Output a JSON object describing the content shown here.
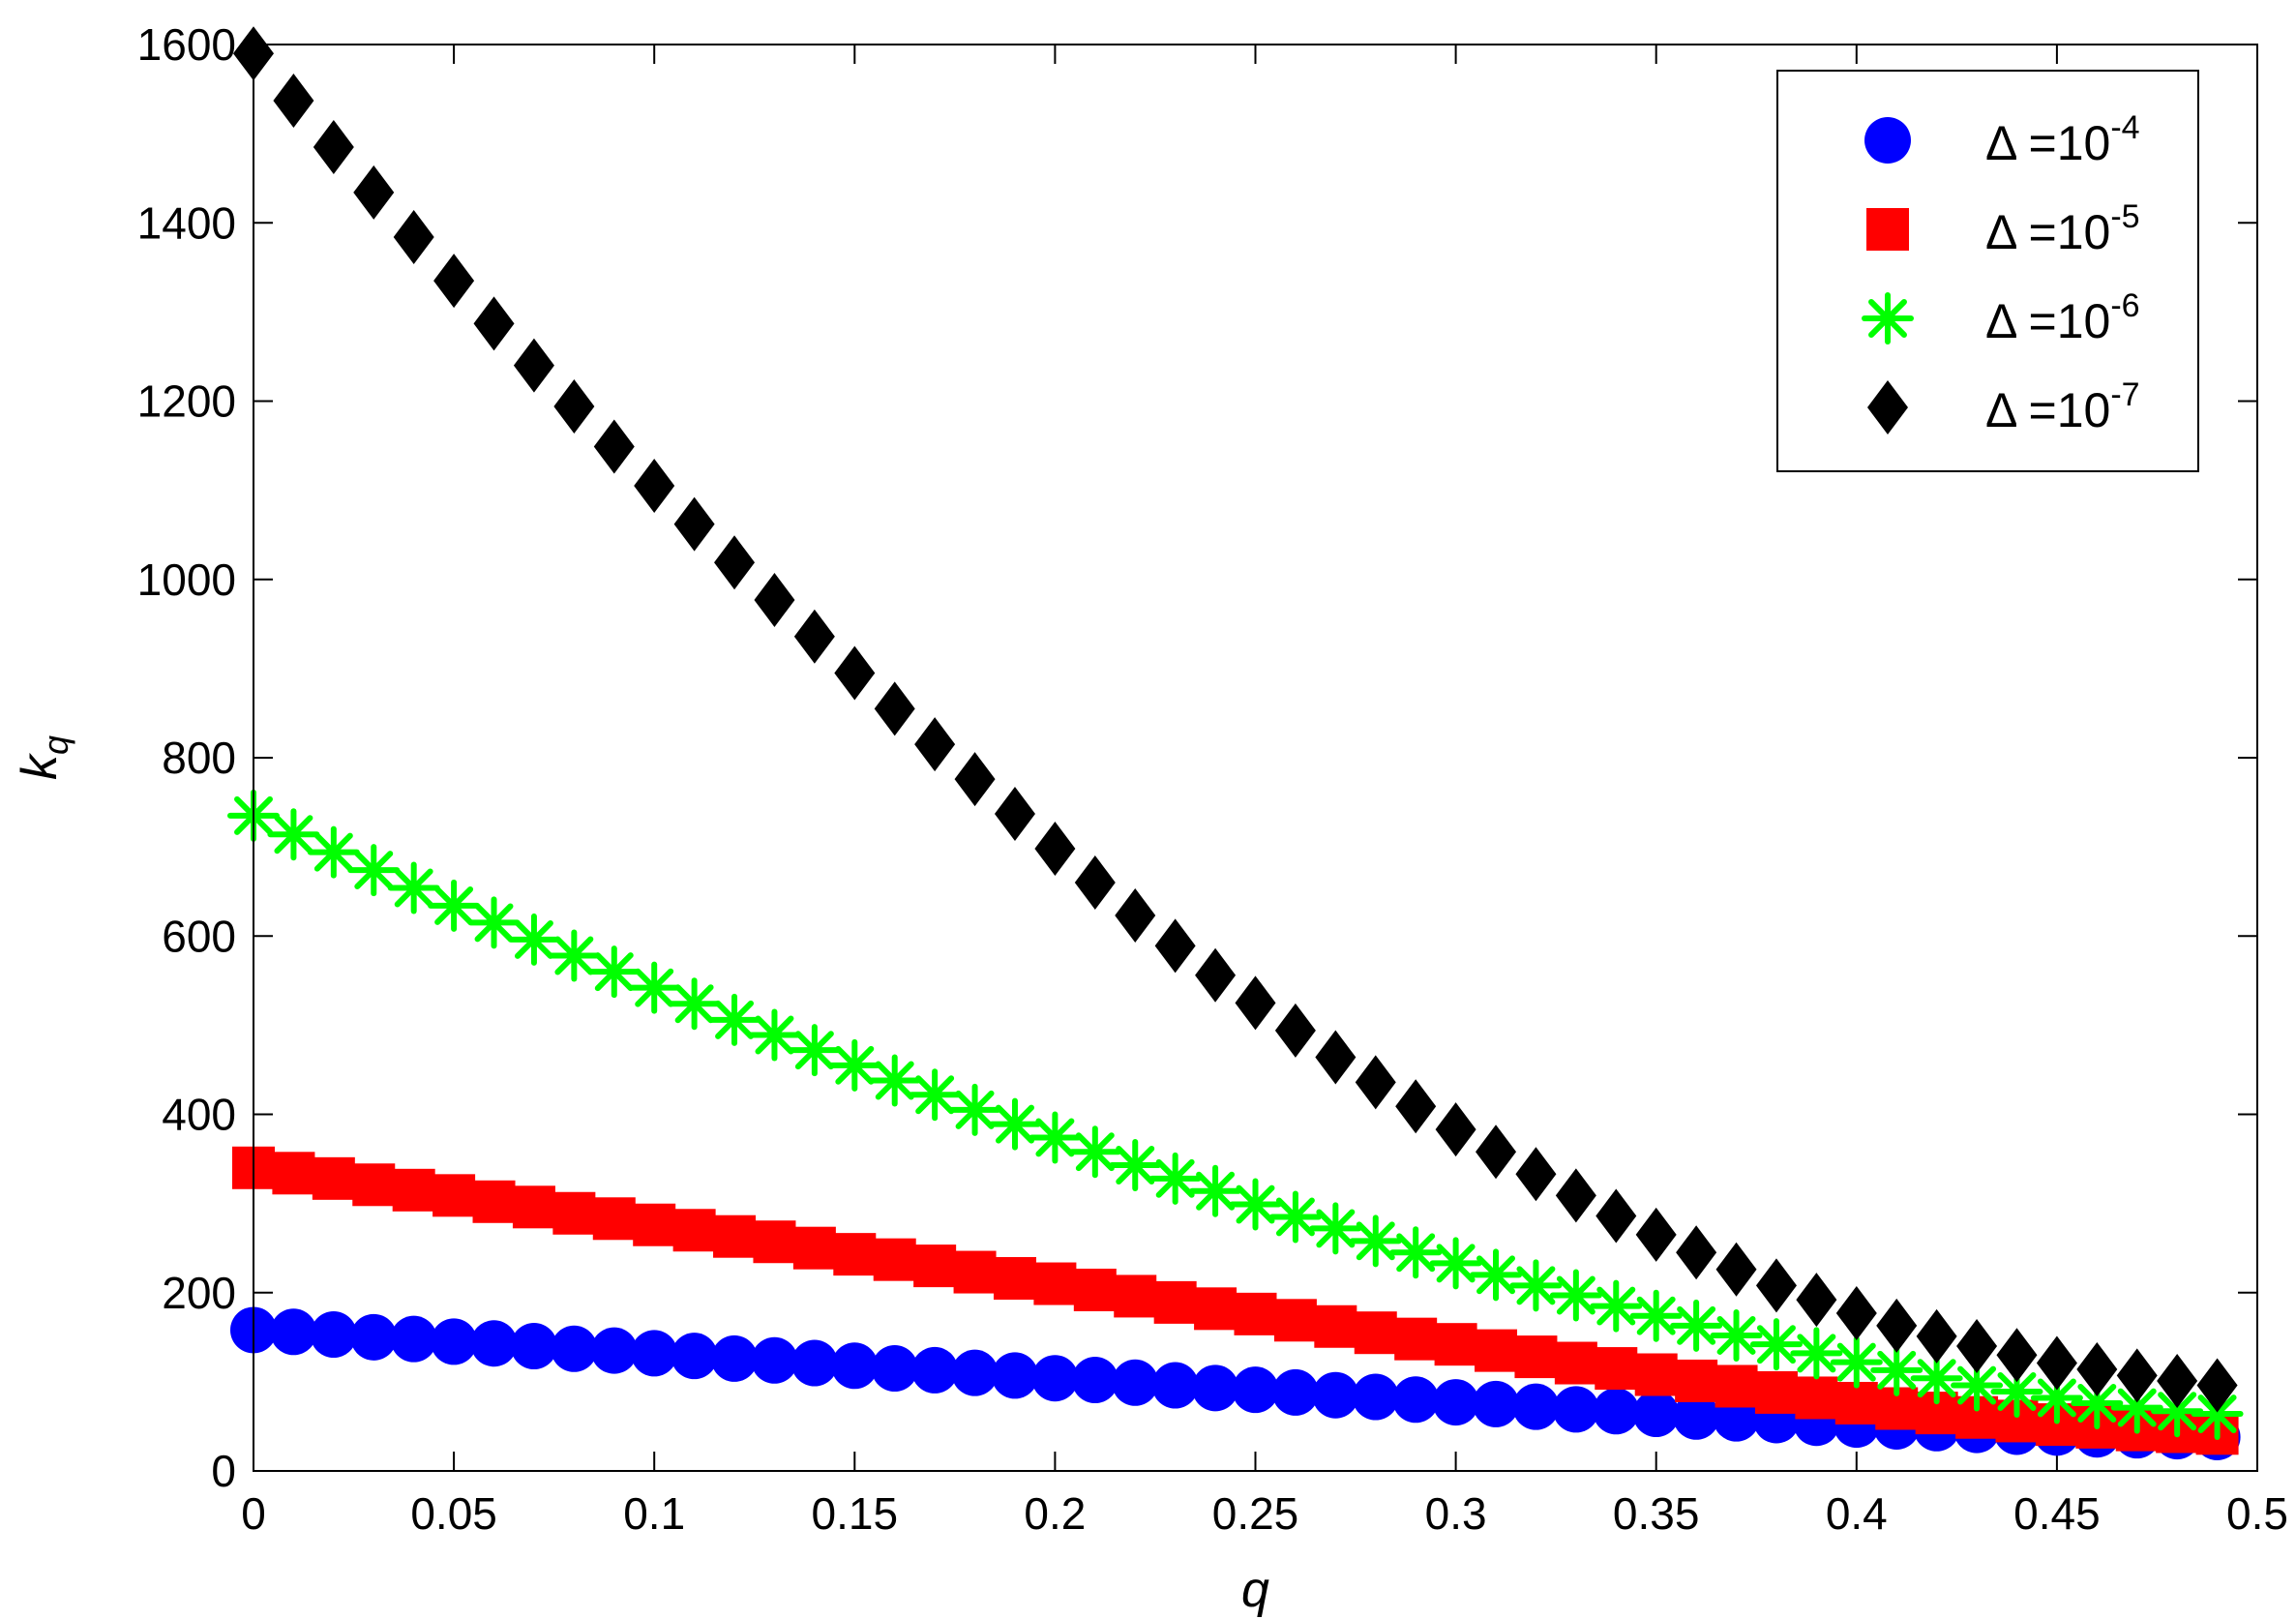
{
  "chart_data": {
    "type": "scatter",
    "xlabel": "q",
    "ylabel": {
      "base": "k",
      "sub": "q"
    },
    "xlim": [
      0,
      0.5
    ],
    "ylim": [
      0,
      1600
    ],
    "xticks": [
      "0",
      "0.05",
      "0.1",
      "0.15",
      "0.2",
      "0.25",
      "0.3",
      "0.35",
      "0.4",
      "0.45",
      "0.5"
    ],
    "yticks": [
      "0",
      "200",
      "400",
      "600",
      "800",
      "1000",
      "1200",
      "1400",
      "1600"
    ],
    "grid": false,
    "legend_position": "top-right",
    "x": [
      0,
      0.01,
      0.02,
      0.03,
      0.04,
      0.05,
      0.06,
      0.07,
      0.08,
      0.09,
      0.1,
      0.11,
      0.12,
      0.13,
      0.14,
      0.15,
      0.16,
      0.17,
      0.18,
      0.19,
      0.2,
      0.21,
      0.22,
      0.23,
      0.24,
      0.25,
      0.26,
      0.27,
      0.28,
      0.29,
      0.3,
      0.31,
      0.32,
      0.33,
      0.34,
      0.35,
      0.36,
      0.37,
      0.38,
      0.39,
      0.4,
      0.41,
      0.42,
      0.43,
      0.44,
      0.45,
      0.46,
      0.47,
      0.48,
      0.49
    ],
    "series": [
      {
        "name": "Δ =10-4",
        "label_base": "Δ =10",
        "label_exp": "-4",
        "marker": "circle",
        "color": "#0000ff",
        "values": [
          158,
          156,
          153,
          150,
          148,
          145,
          143,
          140,
          137,
          135,
          132,
          129,
          126,
          124,
          121,
          118,
          115,
          113,
          110,
          107,
          104,
          102,
          99,
          96,
          93,
          91,
          88,
          85,
          83,
          80,
          77,
          75,
          72,
          69,
          67,
          64,
          61,
          59,
          57,
          54,
          52,
          50,
          48,
          46,
          44,
          43,
          41,
          40,
          39,
          38
        ]
      },
      {
        "name": "Δ =10-5",
        "label_base": "Δ =10",
        "label_exp": "-5",
        "marker": "square",
        "color": "#ff0000",
        "values": [
          340,
          334,
          328,
          321,
          315,
          309,
          302,
          296,
          289,
          283,
          276,
          270,
          263,
          257,
          250,
          243,
          237,
          230,
          223,
          216,
          210,
          203,
          196,
          189,
          182,
          176,
          169,
          162,
          155,
          148,
          142,
          135,
          128,
          121,
          115,
          108,
          101,
          95,
          88,
          82,
          76,
          70,
          65,
          60,
          56,
          52,
          49,
          46,
          44,
          42
        ]
      },
      {
        "name": "Δ =10-6",
        "label_base": "Δ =10",
        "label_exp": "-6",
        "marker": "asterisk",
        "color": "#00ff00",
        "values": [
          735,
          714,
          694,
          674,
          654,
          634,
          615,
          596,
          578,
          560,
          542,
          524,
          506,
          489,
          472,
          455,
          438,
          422,
          405,
          389,
          374,
          358,
          343,
          328,
          314,
          299,
          285,
          272,
          258,
          245,
          233,
          220,
          208,
          197,
          185,
          174,
          163,
          152,
          142,
          132,
          122,
          113,
          104,
          96,
          89,
          82,
          76,
          71,
          67,
          64
        ]
      },
      {
        "name": "Δ =10-7",
        "label_base": "Δ =10",
        "label_exp": "-7",
        "marker": "diamond",
        "color": "#000000",
        "values": [
          1590,
          1537,
          1485,
          1434,
          1384,
          1335,
          1287,
          1240,
          1194,
          1149,
          1105,
          1062,
          1019,
          977,
          936,
          895,
          855,
          815,
          776,
          737,
          698,
          660,
          623,
          589,
          556,
          525,
          494,
          464,
          436,
          409,
          383,
          358,
          333,
          309,
          286,
          265,
          245,
          226,
          208,
          192,
          177,
          163,
          151,
          140,
          130,
          121,
          114,
          107,
          101,
          96
        ]
      }
    ]
  }
}
